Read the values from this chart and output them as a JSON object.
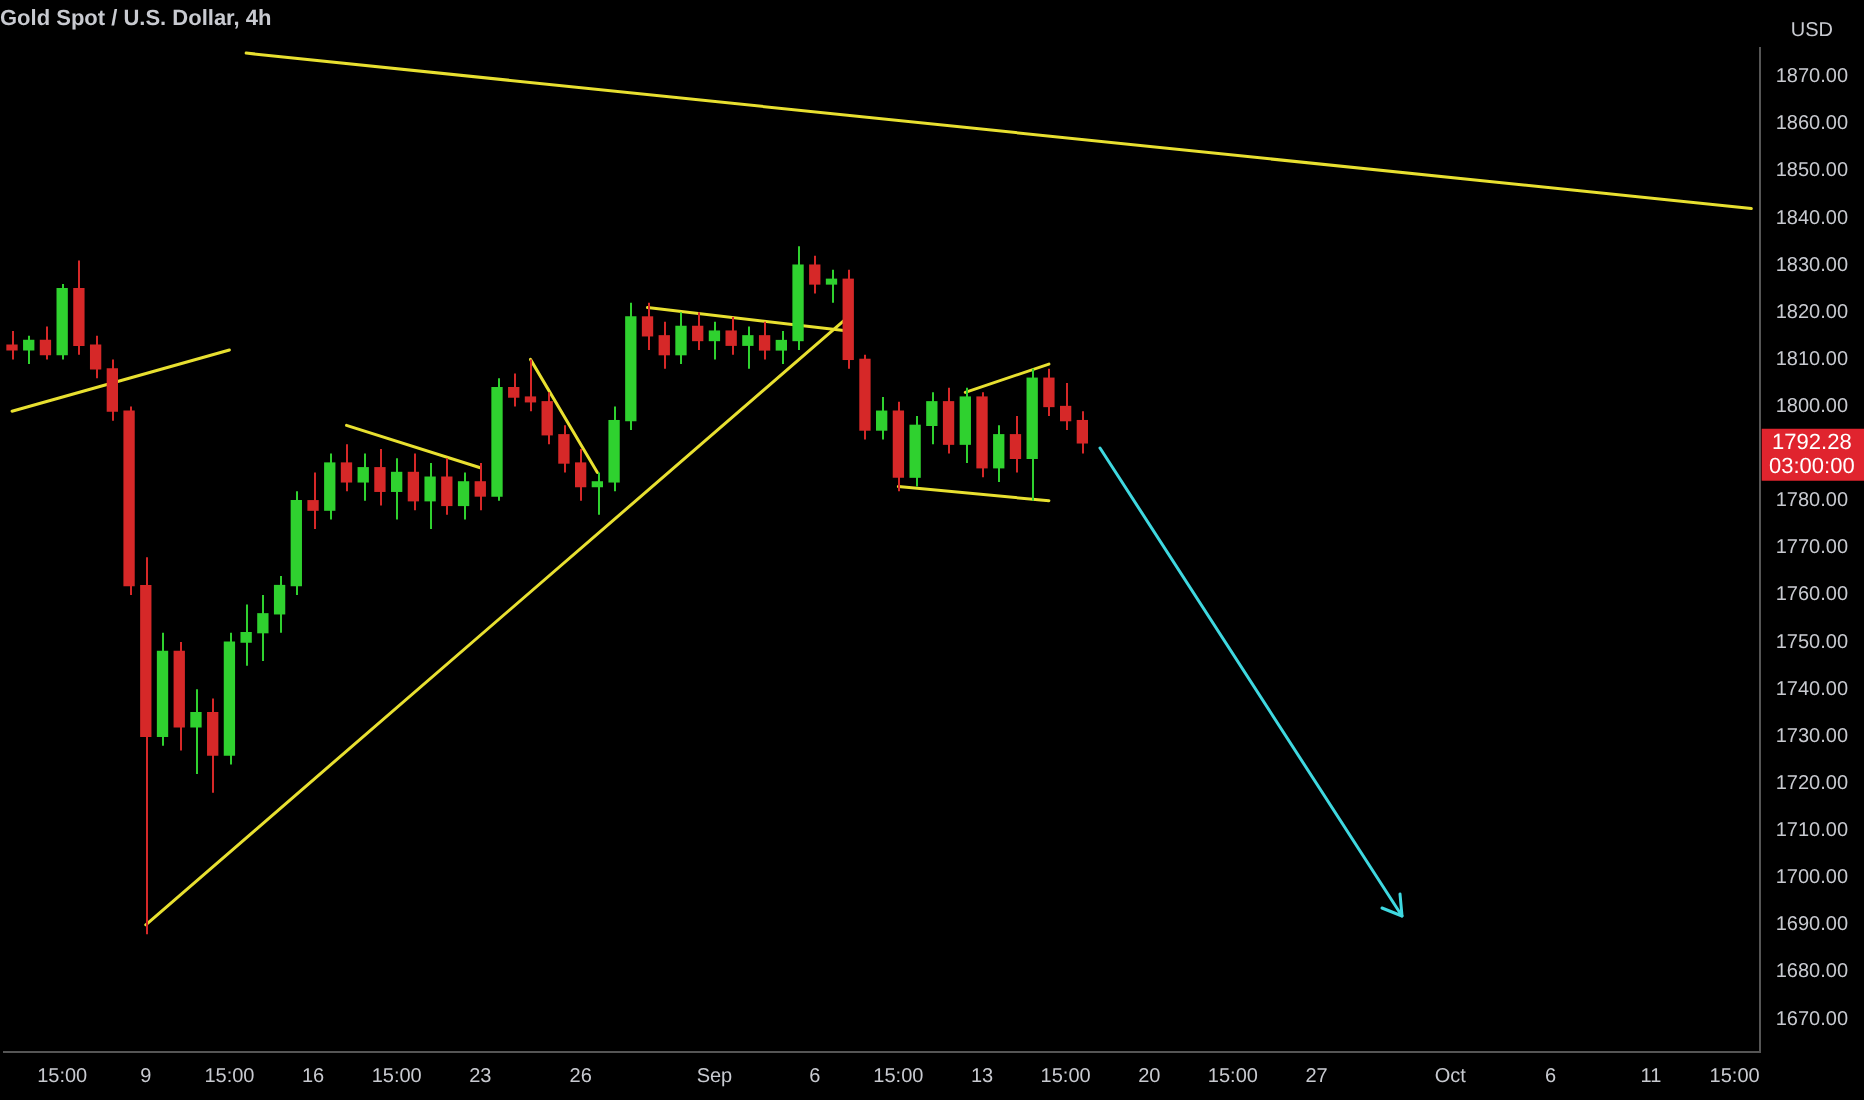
{
  "chart_data": {
    "type": "candlestick",
    "title": "Gold Spot / U.S. Dollar, 4h",
    "ylabel": "USD",
    "categories": [
      null,
      null,
      null,
      "15:00",
      null,
      null,
      null,
      null,
      "9",
      null,
      null,
      null,
      null,
      "15:00",
      null,
      null,
      null,
      null,
      "16",
      null,
      null,
      null,
      null,
      "15:00",
      null,
      null,
      null,
      null,
      "23",
      null,
      null,
      null,
      null,
      null,
      "26",
      null,
      null,
      null,
      null,
      null,
      null,
      null,
      "Sep",
      null,
      null,
      null,
      null,
      null,
      "6",
      null,
      null,
      null,
      null,
      "15:00",
      null,
      null,
      null,
      null,
      "13",
      null,
      null,
      null,
      null,
      "15:00",
      null,
      null,
      null,
      null,
      "20",
      null,
      null,
      null,
      null,
      "15:00",
      null,
      null,
      null,
      null,
      "27",
      null,
      null,
      null,
      null,
      null,
      null,
      null,
      "Oct",
      null,
      null,
      null,
      null,
      null,
      "6",
      null,
      null,
      null,
      null,
      null,
      "11",
      null,
      null,
      null,
      null,
      "15:00",
      null
    ],
    "ohlc": [
      [
        1813,
        1816,
        1810,
        1812
      ],
      [
        1812,
        1815,
        1809,
        1814
      ],
      [
        1814,
        1817,
        1810,
        1811
      ],
      [
        1811,
        1826,
        1810,
        1825
      ],
      [
        1825,
        1831,
        1811,
        1813
      ],
      [
        1813,
        1815,
        1806,
        1808
      ],
      [
        1808,
        1810,
        1797,
        1799
      ],
      [
        1799,
        1800,
        1760,
        1762
      ],
      [
        1762,
        1768,
        1688,
        1730
      ],
      [
        1730,
        1752,
        1728,
        1748
      ],
      [
        1748,
        1750,
        1727,
        1732
      ],
      [
        1732,
        1740,
        1722,
        1735
      ],
      [
        1735,
        1738,
        1718,
        1726
      ],
      [
        1726,
        1752,
        1724,
        1750
      ],
      [
        1750,
        1758,
        1745,
        1752
      ],
      [
        1752,
        1760,
        1746,
        1756
      ],
      [
        1756,
        1764,
        1752,
        1762
      ],
      [
        1762,
        1782,
        1760,
        1780
      ],
      [
        1780,
        1786,
        1774,
        1778
      ],
      [
        1778,
        1790,
        1776,
        1788
      ],
      [
        1788,
        1792,
        1782,
        1784
      ],
      [
        1784,
        1790,
        1780,
        1787
      ],
      [
        1787,
        1791,
        1779,
        1782
      ],
      [
        1782,
        1789,
        1776,
        1786
      ],
      [
        1786,
        1790,
        1778,
        1780
      ],
      [
        1780,
        1788,
        1774,
        1785
      ],
      [
        1785,
        1789,
        1777,
        1779
      ],
      [
        1779,
        1786,
        1776,
        1784
      ],
      [
        1784,
        1788,
        1778,
        1781
      ],
      [
        1781,
        1806,
        1780,
        1804
      ],
      [
        1804,
        1807,
        1800,
        1802
      ],
      [
        1802,
        1810,
        1799,
        1801
      ],
      [
        1801,
        1803,
        1792,
        1794
      ],
      [
        1794,
        1796,
        1786,
        1788
      ],
      [
        1788,
        1791,
        1780,
        1783
      ],
      [
        1783,
        1786,
        1777,
        1784
      ],
      [
        1784,
        1800,
        1782,
        1797
      ],
      [
        1797,
        1822,
        1795,
        1819
      ],
      [
        1819,
        1822,
        1812,
        1815
      ],
      [
        1815,
        1818,
        1808,
        1811
      ],
      [
        1811,
        1820,
        1809,
        1817
      ],
      [
        1817,
        1820,
        1812,
        1814
      ],
      [
        1814,
        1818,
        1810,
        1816
      ],
      [
        1816,
        1819,
        1811,
        1813
      ],
      [
        1813,
        1817,
        1808,
        1815
      ],
      [
        1815,
        1818,
        1810,
        1812
      ],
      [
        1812,
        1816,
        1809,
        1814
      ],
      [
        1814,
        1834,
        1812,
        1830
      ],
      [
        1830,
        1832,
        1824,
        1826
      ],
      [
        1826,
        1829,
        1822,
        1827
      ],
      [
        1827,
        1829,
        1808,
        1810
      ],
      [
        1810,
        1811,
        1793,
        1795
      ],
      [
        1795,
        1802,
        1793,
        1799
      ],
      [
        1799,
        1801,
        1782,
        1785
      ],
      [
        1785,
        1798,
        1783,
        1796
      ],
      [
        1796,
        1803,
        1792,
        1801
      ],
      [
        1801,
        1804,
        1790,
        1792
      ],
      [
        1792,
        1804,
        1788,
        1802
      ],
      [
        1802,
        1803,
        1785,
        1787
      ],
      [
        1787,
        1796,
        1784,
        1794
      ],
      [
        1794,
        1798,
        1786,
        1789
      ],
      [
        1789,
        1808,
        1780,
        1806
      ],
      [
        1806,
        1808,
        1798,
        1800
      ],
      [
        1800,
        1805,
        1795,
        1797
      ],
      [
        1797,
        1799,
        1790,
        1792.28
      ],
      null,
      null,
      null,
      null,
      null,
      null,
      null,
      null,
      null,
      null,
      null,
      null,
      null,
      null,
      null,
      null,
      null,
      null,
      null,
      null,
      null,
      null,
      null,
      null,
      null,
      null,
      null,
      null,
      null,
      null,
      null,
      null,
      null,
      null,
      null,
      null,
      null,
      null,
      null,
      null
    ],
    "colors": [
      "#d62828",
      "#2fd12f",
      "#d62828",
      "#2fd12f",
      "#d62828",
      "#d62828",
      "#d62828",
      "#d62828",
      "#d62828",
      "#2fd12f",
      "#d62828",
      "#2fd12f",
      "#d62828",
      "#2fd12f",
      "#2fd12f",
      "#2fd12f",
      "#2fd12f",
      "#2fd12f",
      "#d62828",
      "#2fd12f",
      "#d62828",
      "#2fd12f",
      "#d62828",
      "#2fd12f",
      "#d62828",
      "#2fd12f",
      "#d62828",
      "#2fd12f",
      "#d62828",
      "#2fd12f",
      "#d62828",
      "#d62828",
      "#d62828",
      "#d62828",
      "#d62828",
      "#2fd12f",
      "#2fd12f",
      "#2fd12f",
      "#d62828",
      "#d62828",
      "#2fd12f",
      "#d62828",
      "#2fd12f",
      "#d62828",
      "#2fd12f",
      "#d62828",
      "#2fd12f",
      "#2fd12f",
      "#d62828",
      "#2fd12f",
      "#d62828",
      "#d62828",
      "#2fd12f",
      "#d62828",
      "#2fd12f",
      "#2fd12f",
      "#d62828",
      "#2fd12f",
      "#d62828",
      "#2fd12f",
      "#d62828",
      "#2fd12f",
      "#d62828",
      "#d62828",
      "#d62828",
      null,
      null,
      null,
      null,
      null,
      null,
      null,
      null,
      null,
      null,
      null,
      null,
      null,
      null,
      null,
      null,
      null,
      null,
      null,
      null,
      null,
      null,
      null,
      null,
      null,
      null,
      null,
      null,
      null,
      null,
      null,
      null,
      null,
      null,
      null,
      null,
      null,
      null,
      null,
      null
    ],
    "series": [
      {
        "type": "line",
        "color": "#e8e030",
        "values": [
          1799,
          null,
          null,
          null,
          null,
          null,
          null,
          null,
          null,
          null,
          null,
          null,
          null,
          1812,
          null,
          null,
          null,
          null,
          null,
          null,
          null,
          null,
          null,
          null,
          null,
          null,
          null,
          null,
          null,
          null,
          null,
          null,
          null,
          null,
          null,
          null,
          null,
          null,
          null,
          null,
          null,
          null,
          null,
          null,
          null,
          null,
          null,
          null,
          null,
          null,
          null,
          null,
          null,
          null,
          null,
          null,
          null,
          null,
          null,
          null,
          null,
          null,
          null,
          null,
          null,
          null,
          null,
          null,
          null,
          null,
          null,
          null,
          null,
          null,
          null,
          null,
          null,
          null,
          null,
          null,
          null,
          null,
          null,
          null,
          null,
          null,
          null,
          null,
          null,
          null,
          null,
          null,
          null,
          null,
          null,
          null,
          null,
          null,
          null,
          null,
          null,
          null,
          null,
          null,
          null
        ]
      },
      {
        "type": "line",
        "color": "#e8e030",
        "values": [
          null,
          null,
          null,
          null,
          null,
          null,
          null,
          null,
          null,
          null,
          null,
          null,
          null,
          null,
          null,
          null,
          null,
          null,
          null,
          null,
          1796,
          null,
          null,
          null,
          null,
          null,
          null,
          null,
          1787,
          null,
          null,
          null,
          null,
          null,
          null,
          null,
          null,
          null,
          null,
          null,
          null,
          null,
          null,
          null,
          null,
          null,
          null,
          null,
          null,
          null,
          null,
          null,
          null,
          null,
          null,
          null,
          null,
          null,
          null,
          null,
          null,
          null,
          null,
          null,
          null,
          null,
          null,
          null,
          null,
          null,
          null,
          null,
          null,
          null,
          null,
          null,
          null,
          null,
          null,
          null,
          null,
          null,
          null,
          null,
          null,
          null,
          null,
          null,
          null,
          null,
          null,
          null,
          null,
          null,
          null,
          null,
          null,
          null,
          null,
          null,
          null,
          null,
          null,
          null,
          null
        ]
      },
      {
        "type": "line",
        "color": "#e8e030",
        "values": [
          null,
          null,
          null,
          null,
          null,
          null,
          null,
          null,
          null,
          null,
          null,
          null,
          null,
          null,
          null,
          null,
          null,
          null,
          null,
          null,
          null,
          null,
          null,
          null,
          null,
          null,
          null,
          null,
          null,
          null,
          null,
          1810,
          null,
          null,
          null,
          1786,
          null,
          null,
          null,
          null,
          null,
          null,
          null,
          null,
          null,
          null,
          null,
          null,
          null,
          null,
          null,
          null,
          null,
          null,
          null,
          null,
          null,
          null,
          null,
          null,
          null,
          null,
          null,
          null,
          null,
          null,
          null,
          null,
          null,
          null,
          null,
          null,
          null,
          null,
          null,
          null,
          null,
          null,
          null,
          null,
          null,
          null,
          null,
          null,
          null,
          null,
          null,
          null,
          null,
          null,
          null,
          null,
          null,
          null,
          null,
          null,
          null,
          null,
          null,
          null,
          null,
          null,
          null,
          null,
          null
        ]
      },
      {
        "type": "line",
        "color": "#e8e030",
        "values": [
          null,
          null,
          null,
          null,
          null,
          null,
          null,
          null,
          null,
          null,
          null,
          null,
          null,
          null,
          null,
          null,
          null,
          null,
          null,
          null,
          null,
          null,
          null,
          null,
          null,
          null,
          null,
          null,
          null,
          null,
          null,
          null,
          null,
          null,
          null,
          null,
          null,
          null,
          1821,
          null,
          null,
          null,
          null,
          null,
          null,
          null,
          null,
          null,
          null,
          null,
          1816,
          null,
          null,
          null,
          null,
          null,
          null,
          null,
          null,
          null,
          null,
          null,
          null,
          null,
          null,
          null,
          null,
          null,
          null,
          null,
          null,
          null,
          null,
          null,
          null,
          null,
          null,
          null,
          null,
          null,
          null,
          null,
          null,
          null,
          null,
          null,
          null,
          null,
          null,
          null,
          null,
          null,
          null,
          null,
          null,
          null,
          null,
          null,
          null,
          null,
          null,
          null,
          null,
          null,
          null
        ]
      },
      {
        "type": "line",
        "color": "#e8e030",
        "values": [
          null,
          null,
          null,
          null,
          null,
          null,
          null,
          null,
          1690,
          null,
          null,
          null,
          null,
          null,
          null,
          null,
          null,
          null,
          null,
          null,
          null,
          null,
          null,
          null,
          null,
          null,
          null,
          null,
          null,
          null,
          null,
          null,
          null,
          null,
          null,
          null,
          null,
          null,
          null,
          null,
          null,
          null,
          null,
          null,
          null,
          null,
          null,
          null,
          null,
          null,
          1819,
          null,
          null,
          null,
          null,
          null,
          null,
          null,
          null,
          null,
          null,
          null,
          null,
          null,
          null,
          null,
          null,
          null,
          null,
          null,
          null,
          null,
          null,
          null,
          null,
          null,
          null,
          null,
          null,
          null,
          null,
          null,
          null,
          null,
          null,
          null,
          null,
          null,
          null,
          null,
          null,
          null,
          null,
          null,
          null,
          null,
          null,
          null,
          null,
          null,
          null,
          null,
          null,
          null,
          null
        ]
      },
      {
        "type": "line",
        "color": "#e8e030",
        "values": [
          null,
          null,
          null,
          null,
          null,
          null,
          null,
          null,
          null,
          null,
          null,
          null,
          null,
          null,
          null,
          null,
          null,
          null,
          null,
          null,
          null,
          null,
          null,
          null,
          null,
          null,
          null,
          null,
          null,
          null,
          null,
          null,
          null,
          null,
          null,
          null,
          null,
          null,
          null,
          null,
          null,
          null,
          null,
          null,
          null,
          null,
          null,
          null,
          null,
          null,
          null,
          null,
          null,
          null,
          null,
          null,
          null,
          1803,
          null,
          null,
          null,
          null,
          1809,
          null,
          null,
          null,
          null,
          null,
          null,
          null,
          null,
          null,
          null,
          null,
          null,
          null,
          null,
          null,
          null,
          null,
          null,
          null,
          null,
          null,
          null,
          null,
          null,
          null,
          null,
          null,
          null,
          null,
          null,
          null,
          null,
          null,
          null,
          null,
          null,
          null,
          null,
          null,
          null,
          null,
          null
        ]
      },
      {
        "type": "line",
        "color": "#e8e030",
        "values": [
          null,
          null,
          null,
          null,
          null,
          null,
          null,
          null,
          null,
          null,
          null,
          null,
          null,
          null,
          null,
          null,
          null,
          null,
          null,
          null,
          null,
          null,
          null,
          null,
          null,
          null,
          null,
          null,
          null,
          null,
          null,
          null,
          null,
          null,
          null,
          null,
          null,
          null,
          null,
          null,
          null,
          null,
          null,
          null,
          null,
          null,
          null,
          null,
          null,
          null,
          null,
          null,
          null,
          1783,
          null,
          null,
          null,
          null,
          null,
          null,
          null,
          null,
          1780,
          null,
          null,
          null,
          null,
          null,
          null,
          null,
          null,
          null,
          null,
          null,
          null,
          null,
          null,
          null,
          null,
          null,
          null,
          null,
          null,
          null,
          null,
          null,
          null,
          null,
          null,
          null,
          null,
          null,
          null,
          null,
          null,
          null,
          null,
          null,
          null,
          null,
          null,
          null,
          null,
          null,
          null
        ]
      },
      {
        "type": "line",
        "color": "#e8e030",
        "values": [
          null,
          null,
          null,
          null,
          null,
          null,
          null,
          null,
          null,
          null,
          null,
          null,
          null,
          null,
          1875,
          null,
          null,
          null,
          null,
          null,
          null,
          null,
          null,
          null,
          null,
          null,
          null,
          null,
          null,
          null,
          null,
          null,
          null,
          null,
          null,
          null,
          null,
          null,
          null,
          null,
          null,
          null,
          null,
          null,
          null,
          null,
          null,
          null,
          null,
          null,
          null,
          null,
          null,
          null,
          null,
          null,
          null,
          null,
          null,
          null,
          null,
          null,
          null,
          null,
          null,
          null,
          null,
          null,
          null,
          null,
          null,
          null,
          null,
          null,
          null,
          null,
          null,
          null,
          null,
          null,
          null,
          null,
          null,
          null,
          null,
          null,
          null,
          null,
          null,
          null,
          null,
          null,
          null,
          null,
          null,
          null,
          null,
          null,
          null,
          null,
          null,
          null,
          null,
          null,
          1842
        ]
      }
    ],
    "ylim": [
      1663,
      1876
    ],
    "yticks": [
      {
        "value": 1670,
        "label": "1670.00"
      },
      {
        "value": 1680,
        "label": "1680.00"
      },
      {
        "value": 1690,
        "label": "1690.00"
      },
      {
        "value": 1700,
        "label": "1700.00"
      },
      {
        "value": 1710,
        "label": "1710.00"
      },
      {
        "value": 1720,
        "label": "1720.00"
      },
      {
        "value": 1730,
        "label": "1730.00"
      },
      {
        "value": 1740,
        "label": "1740.00"
      },
      {
        "value": 1750,
        "label": "1750.00"
      },
      {
        "value": 1760,
        "label": "1760.00"
      },
      {
        "value": 1770,
        "label": "1770.00"
      },
      {
        "value": 1780,
        "label": "1780.00"
      },
      {
        "value": 1800,
        "label": "1800.00"
      },
      {
        "value": 1810,
        "label": "1810.00"
      },
      {
        "value": 1820,
        "label": "1820.00"
      },
      {
        "value": 1830,
        "label": "1830.00"
      },
      {
        "value": 1840,
        "label": "1840.00"
      },
      {
        "value": 1850,
        "label": "1850.00"
      },
      {
        "value": 1860,
        "label": "1860.00"
      },
      {
        "value": 1870,
        "label": "1870.00"
      }
    ],
    "annotations": [
      "1792.28",
      "03:00:00"
    ],
    "grid": false,
    "legend": false
  }
}
